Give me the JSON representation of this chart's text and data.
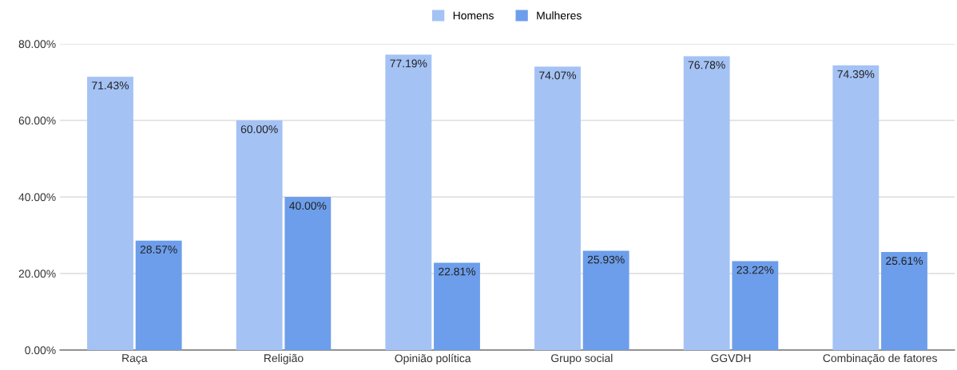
{
  "chart_data": {
    "type": "bar",
    "categories": [
      "Raça",
      "Religião",
      "Opinião política",
      "Grupo social",
      "GGVDH",
      "Combinação de fatores"
    ],
    "series": [
      {
        "name": "Homens",
        "color": "#a4c2f4",
        "values": [
          71.43,
          60.0,
          77.19,
          74.07,
          76.78,
          74.39
        ],
        "value_labels": [
          "71.43%",
          "60.00%",
          "77.19%",
          "74.07%",
          "76.78%",
          "74.39%"
        ]
      },
      {
        "name": "Mulheres",
        "color": "#6d9eeb",
        "values": [
          28.57,
          40.0,
          22.81,
          25.93,
          23.22,
          25.61
        ],
        "value_labels": [
          "28.57%",
          "40.00%",
          "22.81%",
          "25.93%",
          "23.22%",
          "25.61%"
        ]
      }
    ],
    "ylim": [
      0,
      80
    ],
    "yticks": [
      {
        "value": 0,
        "label": "0.00%"
      },
      {
        "value": 20,
        "label": "20.00%"
      },
      {
        "value": 40,
        "label": "40.00%"
      },
      {
        "value": 60,
        "label": "60.00%"
      },
      {
        "value": 80,
        "label": "80.00%"
      }
    ],
    "grid": "y",
    "legend": "top"
  }
}
